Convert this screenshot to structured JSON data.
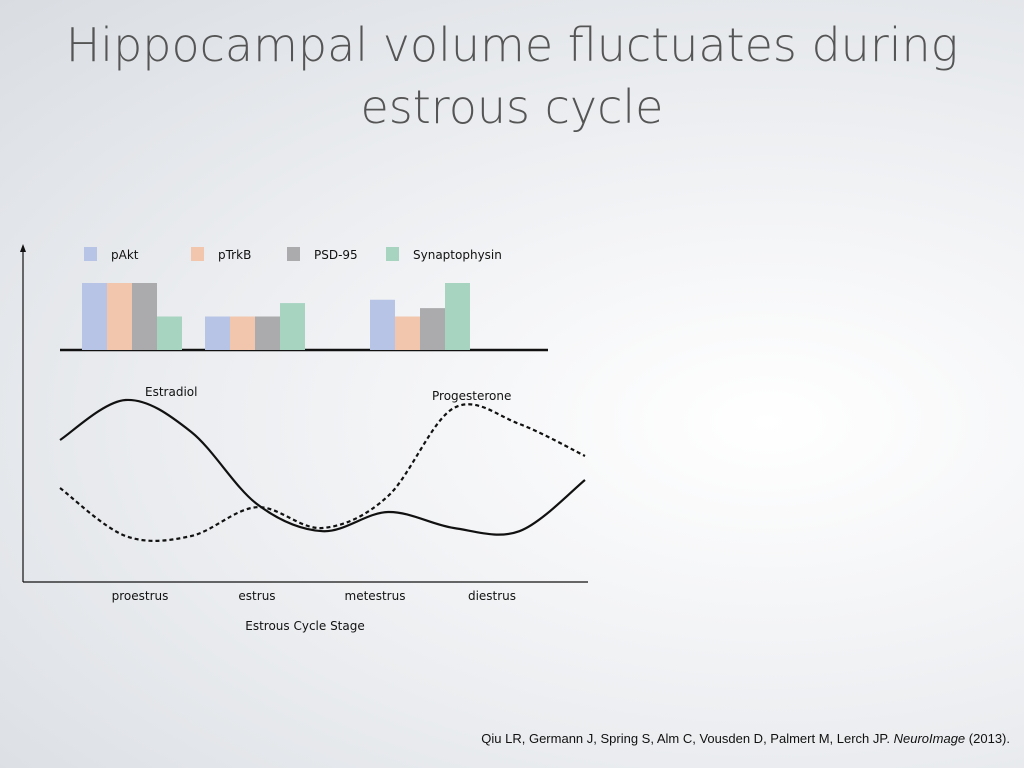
{
  "slide": {
    "title_line1": "Hippocampal volume fluctuates during",
    "title_line2": "estrous cycle"
  },
  "chart_data": [
    {
      "type": "bar",
      "title": "",
      "categories": [
        "proestrus",
        "estrus",
        "diestrus"
      ],
      "series": [
        {
          "name": "pAkt",
          "values": [
            2,
            1,
            1.5
          ],
          "color": "#b7c4e6"
        },
        {
          "name": "pTrkB",
          "values": [
            2,
            1,
            1
          ],
          "color": "#f2c6ad"
        },
        {
          "name": "PSD-95",
          "values": [
            2,
            1,
            1.25
          ],
          "color": "#ababad"
        },
        {
          "name": "Synaptophysin",
          "values": [
            1,
            1.4,
            2
          ],
          "color": "#a7d3c1"
        }
      ],
      "ylim": [
        0,
        2
      ],
      "legend_position": "top",
      "axis": "baseline only",
      "grid": false
    },
    {
      "type": "line",
      "title": "",
      "xlabel": "Estrous Cycle Stage",
      "ylabel": "",
      "categories": [
        "proestrus",
        "estrus",
        "metestrus",
        "diestrus"
      ],
      "x": [
        0,
        0.5,
        1,
        1.5,
        2,
        2.5,
        3,
        3.5,
        4
      ],
      "series": [
        {
          "name": "Estradiol",
          "style": "solid",
          "values": [
            0.75,
            1.0,
            0.8,
            0.35,
            0.18,
            0.3,
            0.2,
            0.18,
            0.5
          ]
        },
        {
          "name": "Progesterone",
          "style": "dashed",
          "values": [
            0.45,
            0.15,
            0.15,
            0.33,
            0.2,
            0.4,
            0.95,
            0.85,
            0.65
          ]
        }
      ],
      "ylim": [
        0,
        1.1
      ],
      "grid": false,
      "legend_position": "labels on curves"
    }
  ],
  "citation": {
    "authors": "Qiu LR, Germann J, Spring S, Alm C, Vousden D, Palmert M, Lerch JP.",
    "journal": "NeuroImage",
    "year": "(2013)."
  }
}
